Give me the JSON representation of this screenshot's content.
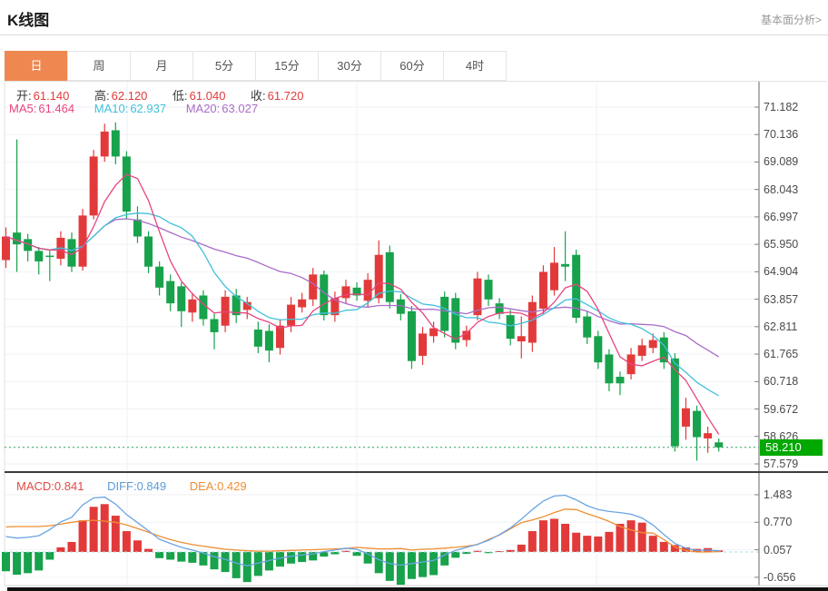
{
  "header": {
    "title": "K线图",
    "link": "基本面分析>"
  },
  "tabs": {
    "items": [
      "日",
      "周",
      "月",
      "5分",
      "15分",
      "30分",
      "60分",
      "4时"
    ],
    "selected": "日"
  },
  "legend": {
    "ohlc": {
      "open_label": "开:",
      "open": "61.140",
      "high_label": "高:",
      "high": "62.120",
      "low_label": "低:",
      "low": "61.040",
      "close_label": "收:",
      "close": "61.720"
    },
    "ma": {
      "ma5_label": "MA5:",
      "ma5": "61.464",
      "ma10_label": "MA10:",
      "ma10": "62.937",
      "ma20_label": "MA20:",
      "ma20": "63.027"
    },
    "macd": {
      "macd_label": "MACD:",
      "macd": "0.841",
      "diff_label": "DIFF:",
      "diff": "0.849",
      "dea_label": "DEA:",
      "dea": "0.429"
    }
  },
  "price_axis": {
    "ticks": [
      "71.182",
      "70.136",
      "69.089",
      "68.043",
      "66.997",
      "65.950",
      "64.904",
      "63.857",
      "62.811",
      "61.765",
      "60.718",
      "59.672",
      "58.626",
      "57.579"
    ],
    "last_price_label": "58.210"
  },
  "macd_axis": {
    "ticks": [
      "1.483",
      "0.770",
      "0.057",
      "-0.656"
    ]
  },
  "colors": {
    "up": "#e23a3a",
    "down": "#17a24b",
    "ma5": "#e8457f",
    "ma10": "#41c0da",
    "ma20": "#aa6cc8",
    "diff": "#5b9bd5",
    "dea": "#ee8f33",
    "badge": "#00a800",
    "tabActive": "#ef8750",
    "link": "#999999",
    "zeroLine": "#a9d9e5",
    "priceLine": "#23a45b"
  },
  "chart_data": [
    {
      "type": "candlestick",
      "name": "price-pane",
      "columns": [
        "open",
        "close",
        "high",
        "low"
      ],
      "color_convention": "red=up, green=down",
      "overlays": [
        "MA5",
        "MA10",
        "MA20"
      ],
      "y_axis_ticks": [
        71.182,
        70.136,
        69.089,
        68.043,
        66.997,
        65.95,
        64.904,
        63.857,
        62.811,
        61.765,
        60.718,
        59.672,
        58.626,
        57.579
      ],
      "last_price": 58.21,
      "candles": [
        [
          65.35,
          66.25,
          66.6,
          65.05
        ],
        [
          66.4,
          65.95,
          69.95,
          64.9
        ],
        [
          66.15,
          65.7,
          66.35,
          65.3
        ],
        [
          65.7,
          65.3,
          65.85,
          64.8
        ],
        [
          65.52,
          65.48,
          65.75,
          64.55
        ],
        [
          65.4,
          66.2,
          66.45,
          65.15
        ],
        [
          66.15,
          65.1,
          66.4,
          64.9
        ],
        [
          65.1,
          67.05,
          67.3,
          64.95
        ],
        [
          67.05,
          69.3,
          69.55,
          66.9
        ],
        [
          69.3,
          70.25,
          70.55,
          69.1
        ],
        [
          70.3,
          69.3,
          70.6,
          69.0
        ],
        [
          69.3,
          67.2,
          69.5,
          66.9
        ],
        [
          66.9,
          66.25,
          67.4,
          66.0
        ],
        [
          66.25,
          65.1,
          66.45,
          64.85
        ],
        [
          65.1,
          64.3,
          65.3,
          64.0
        ],
        [
          64.55,
          63.7,
          64.8,
          63.4
        ],
        [
          64.35,
          63.4,
          64.5,
          62.8
        ],
        [
          63.35,
          63.85,
          64.1,
          63.0
        ],
        [
          64.0,
          63.1,
          64.2,
          62.85
        ],
        [
          63.1,
          62.6,
          63.3,
          61.95
        ],
        [
          62.85,
          63.95,
          64.2,
          62.6
        ],
        [
          64.0,
          63.25,
          64.25,
          62.95
        ],
        [
          63.45,
          63.75,
          63.95,
          63.1
        ],
        [
          62.7,
          62.05,
          63.0,
          61.8
        ],
        [
          62.65,
          61.9,
          62.9,
          61.45
        ],
        [
          62.0,
          62.85,
          63.1,
          61.75
        ],
        [
          62.85,
          63.65,
          63.95,
          62.6
        ],
        [
          63.55,
          63.85,
          64.1,
          63.35
        ],
        [
          63.85,
          64.8,
          65.05,
          63.6
        ],
        [
          64.8,
          63.25,
          64.95,
          63.05
        ],
        [
          63.25,
          63.9,
          64.15,
          63.0
        ],
        [
          63.9,
          64.35,
          64.6,
          63.7
        ],
        [
          64.3,
          64.0,
          64.5,
          63.8
        ],
        [
          63.8,
          64.6,
          64.85,
          63.55
        ],
        [
          63.9,
          65.55,
          66.1,
          63.7
        ],
        [
          65.65,
          63.75,
          65.9,
          63.5
        ],
        [
          63.85,
          63.3,
          64.05,
          63.05
        ],
        [
          63.4,
          61.5,
          63.6,
          61.2
        ],
        [
          61.7,
          62.55,
          62.8,
          61.35
        ],
        [
          62.45,
          62.75,
          63.0,
          62.2
        ],
        [
          63.95,
          62.65,
          64.15,
          62.4
        ],
        [
          63.9,
          62.2,
          64.1,
          61.95
        ],
        [
          62.3,
          62.65,
          62.85,
          62.05
        ],
        [
          63.25,
          64.65,
          64.9,
          63.05
        ],
        [
          64.6,
          63.85,
          64.8,
          63.6
        ],
        [
          63.7,
          63.3,
          63.9,
          63.1
        ],
        [
          63.25,
          62.35,
          63.45,
          62.1
        ],
        [
          62.25,
          62.45,
          63.2,
          61.6
        ],
        [
          62.2,
          63.75,
          64.0,
          61.85
        ],
        [
          63.5,
          64.9,
          65.15,
          63.3
        ],
        [
          64.2,
          65.25,
          65.85,
          64.0
        ],
        [
          65.2,
          65.1,
          66.45,
          64.55
        ],
        [
          65.55,
          63.15,
          65.75,
          62.95
        ],
        [
          63.2,
          62.4,
          63.4,
          62.15
        ],
        [
          62.45,
          61.45,
          62.65,
          61.2
        ],
        [
          61.75,
          60.65,
          61.95,
          60.35
        ],
        [
          60.9,
          60.65,
          61.1,
          60.2
        ],
        [
          61.0,
          61.75,
          62.0,
          60.8
        ],
        [
          61.7,
          62.1,
          62.35,
          61.5
        ],
        [
          62.0,
          62.3,
          62.55,
          61.8
        ],
        [
          62.4,
          61.45,
          62.6,
          61.2
        ],
        [
          61.6,
          58.25,
          61.8,
          58.05
        ],
        [
          59.0,
          59.7,
          60.1,
          58.5
        ],
        [
          59.6,
          58.6,
          59.8,
          57.7
        ],
        [
          58.55,
          58.75,
          59.0,
          58.0
        ],
        [
          58.4,
          58.21,
          58.55,
          58.05
        ]
      ]
    },
    {
      "type": "bar",
      "name": "macd-pane",
      "series_names": [
        "MACD histogram",
        "DIFF",
        "DEA"
      ],
      "y_axis_ticks": [
        1.483,
        0.77,
        0.057,
        -0.656
      ],
      "histogram": [
        -0.5,
        -0.59,
        -0.55,
        -0.48,
        -0.2,
        0.12,
        0.26,
        0.82,
        1.17,
        1.24,
        0.94,
        0.54,
        0.3,
        0.08,
        -0.16,
        -0.2,
        -0.25,
        -0.28,
        -0.35,
        -0.45,
        -0.52,
        -0.68,
        -0.78,
        -0.62,
        -0.48,
        -0.38,
        -0.3,
        -0.26,
        -0.22,
        -0.12,
        -0.06,
        0.03,
        -0.1,
        -0.3,
        -0.55,
        -0.75,
        -0.85,
        -0.7,
        -0.65,
        -0.6,
        -0.35,
        -0.15,
        -0.05,
        0.03,
        -0.03,
        0.02,
        0.05,
        0.19,
        0.54,
        0.82,
        0.86,
        0.73,
        0.5,
        0.42,
        0.4,
        0.52,
        0.73,
        0.82,
        0.76,
        0.42,
        0.26,
        0.18,
        0.12,
        0.08,
        0.1,
        0.04
      ],
      "diff_line": [
        0.4,
        0.36,
        0.38,
        0.42,
        0.58,
        0.78,
        0.9,
        1.22,
        1.4,
        1.42,
        1.24,
        0.97,
        0.76,
        0.55,
        0.33,
        0.22,
        0.12,
        0.05,
        -0.03,
        -0.12,
        -0.19,
        -0.29,
        -0.36,
        -0.29,
        -0.22,
        -0.16,
        -0.11,
        -0.08,
        -0.05,
        0.01,
        0.05,
        0.1,
        0.07,
        -0.05,
        -0.2,
        -0.3,
        -0.34,
        -0.3,
        -0.26,
        -0.22,
        -0.08,
        0.04,
        0.12,
        0.2,
        0.3,
        0.45,
        0.62,
        0.85,
        1.1,
        1.32,
        1.45,
        1.47,
        1.35,
        1.2,
        1.1,
        1.05,
        1.02,
        0.98,
        0.88,
        0.7,
        0.45,
        0.22,
        0.1,
        0.04,
        0.05,
        0.03
      ],
      "dea_line": [
        0.65,
        0.66,
        0.66,
        0.66,
        0.68,
        0.72,
        0.77,
        0.81,
        0.82,
        0.8,
        0.77,
        0.7,
        0.61,
        0.51,
        0.41,
        0.32,
        0.25,
        0.19,
        0.15,
        0.11,
        0.07,
        0.05,
        0.03,
        0.02,
        0.02,
        0.03,
        0.04,
        0.05,
        0.06,
        0.07,
        0.08,
        0.09,
        0.12,
        0.1,
        0.08,
        0.08,
        0.09,
        0.05,
        0.07,
        0.08,
        0.1,
        0.12,
        0.15,
        0.19,
        0.32,
        0.44,
        0.6,
        0.76,
        0.83,
        0.91,
        1.02,
        1.11,
        1.1,
        0.99,
        0.9,
        0.79,
        0.66,
        0.57,
        0.5,
        0.49,
        0.32,
        0.13,
        0.04,
        0.0,
        0.0,
        0.01
      ]
    }
  ]
}
